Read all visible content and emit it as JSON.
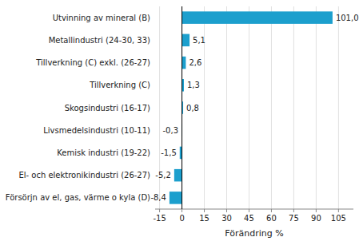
{
  "chart_data": {
    "type": "bar",
    "orientation": "horizontal",
    "categories": [
      "Utvinning av mineral (B)",
      "Metallindustri (24-30, 33)",
      "Tillverkning (C) exkl. (26-27)",
      "Tillverkning (C)",
      "Skogsindustri (16-17)",
      "Livsmedelsindustri (10-11)",
      "Kemisk industri (19-22)",
      "El- och elektronikindustri (26-27)",
      "Försörjn av el, gas, värme o kyla (D)"
    ],
    "values": [
      101.0,
      5.1,
      2.6,
      1.3,
      0.8,
      -0.3,
      -1.5,
      -5.2,
      -8.4
    ],
    "value_labels": [
      "101,0",
      "5,1",
      "2,6",
      "1,3",
      "0,8",
      "-0,3",
      "-1,5",
      "-5,2",
      "-8,4"
    ],
    "data_labels": true,
    "color": "#1c9fcd",
    "xlabel": "Förändring %",
    "xlim": [
      -18,
      115
    ],
    "xticks": [
      -15,
      0,
      15,
      30,
      45,
      60,
      75,
      90,
      105
    ],
    "grid": true
  }
}
